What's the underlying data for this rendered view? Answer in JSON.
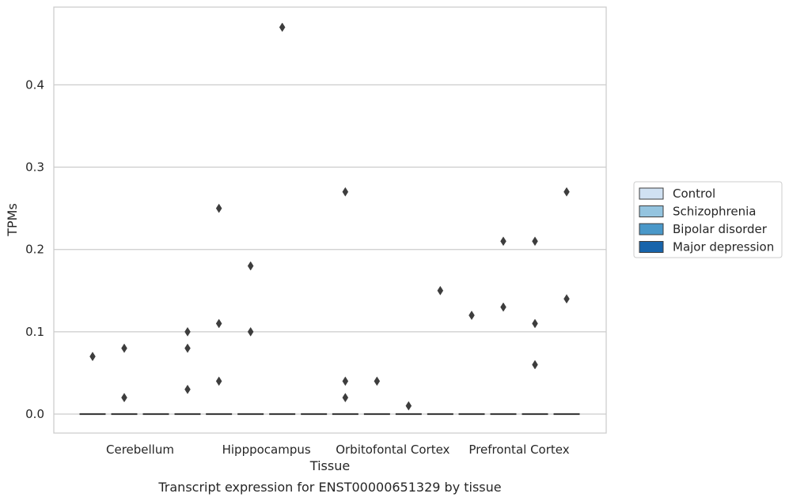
{
  "chart_data": {
    "type": "box",
    "title": "",
    "caption": "Transcript expression for ENST00000651329 by tissue",
    "xlabel": "Tissue",
    "ylabel": "TPMs",
    "ylim": [
      -0.023,
      0.49
    ],
    "yticks": [
      0.0,
      0.1,
      0.2,
      0.3,
      0.4
    ],
    "ytick_labels": [
      "0.0",
      "0.1",
      "0.2",
      "0.3",
      "0.4"
    ],
    "grid": "horizontal",
    "legend_position": "right",
    "categories": [
      "Cerebellum",
      "Hipppocampus",
      "Orbitofontal Cortex",
      "Prefrontal Cortex"
    ],
    "series": [
      {
        "name": "Control",
        "color": "#d0e1f2"
      },
      {
        "name": "Schizophrenia",
        "color": "#94c4df"
      },
      {
        "name": "Bipolar disorder",
        "color": "#4a98c9"
      },
      {
        "name": "Major depression",
        "color": "#1764ab"
      }
    ],
    "boxes": [
      {
        "category": 0,
        "series": 0,
        "median": 0.0,
        "q1": 0.0,
        "q3": 0.0,
        "outliers": [
          0.07
        ]
      },
      {
        "category": 0,
        "series": 1,
        "median": 0.0,
        "q1": 0.0,
        "q3": 0.0,
        "outliers": [
          0.08,
          0.02
        ]
      },
      {
        "category": 0,
        "series": 2,
        "median": 0.0,
        "q1": 0.0,
        "q3": 0.0,
        "outliers": []
      },
      {
        "category": 0,
        "series": 3,
        "median": 0.0,
        "q1": 0.0,
        "q3": 0.0,
        "outliers": [
          0.1,
          0.08,
          0.03
        ]
      },
      {
        "category": 1,
        "series": 0,
        "median": 0.0,
        "q1": 0.0,
        "q3": 0.0,
        "outliers": [
          0.25,
          0.11,
          0.04
        ]
      },
      {
        "category": 1,
        "series": 1,
        "median": 0.0,
        "q1": 0.0,
        "q3": 0.0,
        "outliers": [
          0.18,
          0.1
        ]
      },
      {
        "category": 1,
        "series": 2,
        "median": 0.0,
        "q1": 0.0,
        "q3": 0.0,
        "outliers": [
          0.47
        ]
      },
      {
        "category": 1,
        "series": 3,
        "median": 0.0,
        "q1": 0.0,
        "q3": 0.0,
        "outliers": []
      },
      {
        "category": 2,
        "series": 0,
        "median": 0.0,
        "q1": 0.0,
        "q3": 0.0,
        "outliers": [
          0.27,
          0.04,
          0.02
        ]
      },
      {
        "category": 2,
        "series": 1,
        "median": 0.0,
        "q1": 0.0,
        "q3": 0.0,
        "outliers": [
          0.04
        ]
      },
      {
        "category": 2,
        "series": 2,
        "median": 0.0,
        "q1": 0.0,
        "q3": 0.0,
        "outliers": [
          0.01
        ]
      },
      {
        "category": 2,
        "series": 3,
        "median": 0.0,
        "q1": 0.0,
        "q3": 0.0,
        "outliers": [
          0.15
        ]
      },
      {
        "category": 3,
        "series": 0,
        "median": 0.0,
        "q1": 0.0,
        "q3": 0.0,
        "outliers": [
          0.12
        ]
      },
      {
        "category": 3,
        "series": 1,
        "median": 0.0,
        "q1": 0.0,
        "q3": 0.0,
        "outliers": [
          0.21,
          0.13
        ]
      },
      {
        "category": 3,
        "series": 2,
        "median": 0.0,
        "q1": 0.0,
        "q3": 0.0,
        "outliers": [
          0.21,
          0.11,
          0.06
        ]
      },
      {
        "category": 3,
        "series": 3,
        "median": 0.0,
        "q1": 0.0,
        "q3": 0.0,
        "outliers": [
          0.27,
          0.14
        ]
      }
    ]
  }
}
